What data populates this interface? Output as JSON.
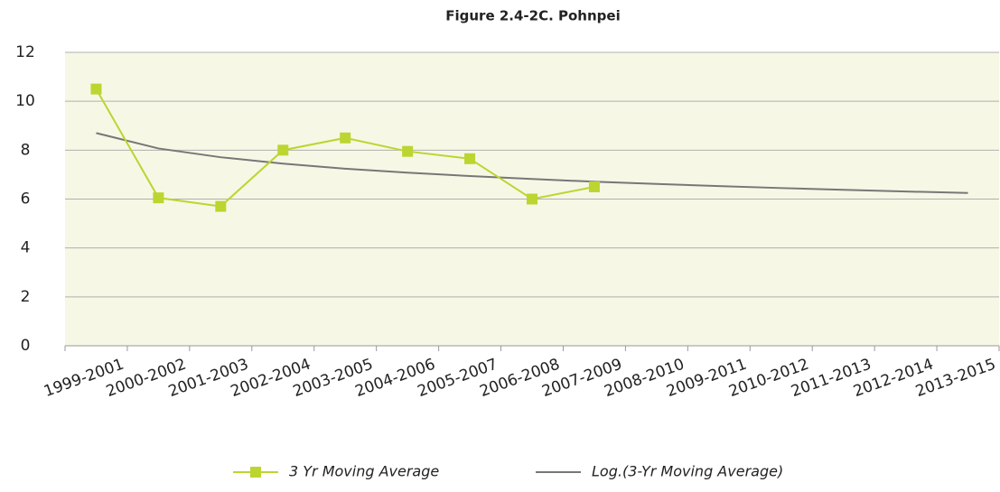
{
  "chart_data": {
    "type": "line",
    "title": "Figure 2.4-2C. Pohnpei",
    "categories": [
      "1999-2001",
      "2000-2002",
      "2001-2003",
      "2002-2004",
      "2003-2005",
      "2004-2006",
      "2005-2007",
      "2006-2008",
      "2007-2009",
      "2008-2010",
      "2009-2011",
      "2010-2012",
      "2011-2013",
      "2012-2014",
      "2013-2015"
    ],
    "series": [
      {
        "name": "3 Yr Moving Average",
        "color": "#bcd530",
        "marker": "square",
        "values": [
          10.5,
          6.05,
          5.7,
          8.0,
          8.5,
          7.95,
          7.65,
          6.0,
          6.5,
          null,
          null,
          null,
          null,
          null,
          null
        ]
      },
      {
        "name": "Log.(3-Yr Moving Average)",
        "color": "#777777",
        "values": [
          8.7,
          8.07,
          7.71,
          7.45,
          7.24,
          7.08,
          6.94,
          6.82,
          6.71,
          6.62,
          6.53,
          6.45,
          6.38,
          6.31,
          6.25
        ]
      }
    ],
    "ylim": [
      0,
      12
    ],
    "yticks": [
      0,
      2,
      4,
      6,
      8,
      10,
      12
    ],
    "grid": true,
    "legend": "bottom"
  }
}
